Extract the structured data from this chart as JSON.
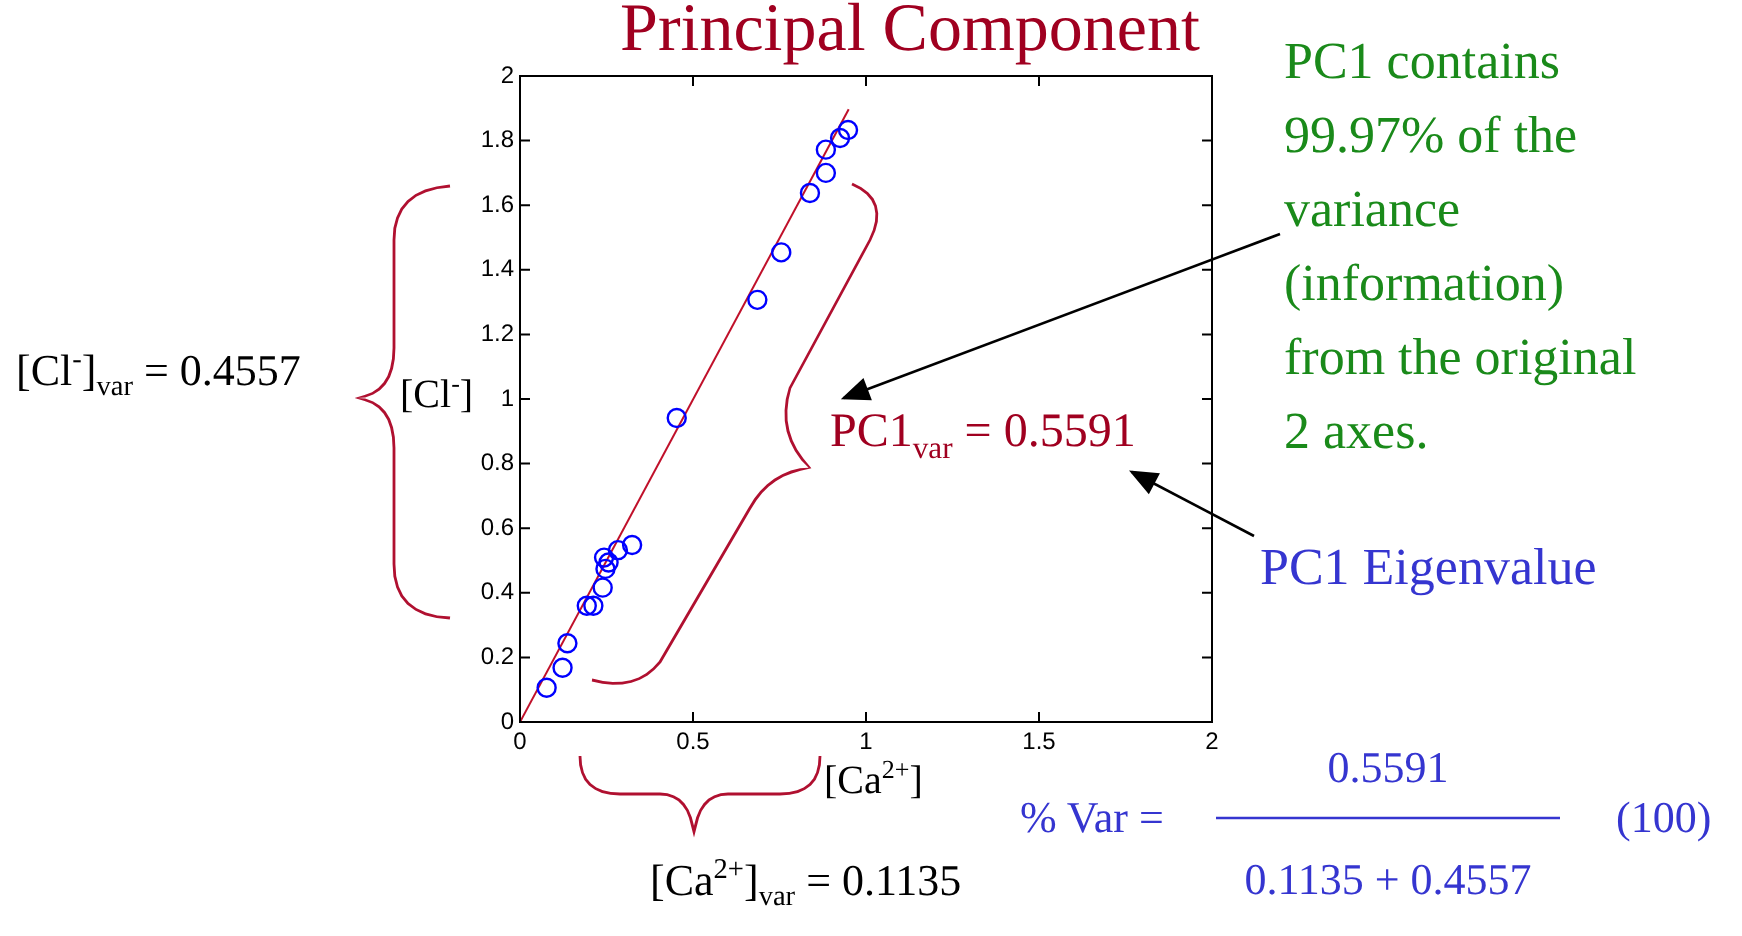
{
  "chart_data": {
    "type": "scatter",
    "title": "Principal Component",
    "xlabel": "[Ca$^{2+}$]",
    "ylabel": "[Cl$^{-}$]",
    "xlim": [
      0,
      2
    ],
    "xticks": [
      0,
      0.5,
      1,
      1.5,
      2
    ],
    "ylim": [
      0,
      2
    ],
    "yticks": [
      0,
      0.2,
      0.4,
      0.6,
      0.8,
      1,
      1.2,
      1.4,
      1.6,
      1.8,
      2
    ],
    "grid": false,
    "legend": false,
    "series": [
      {
        "type": "scatter",
        "marker": "circle",
        "color": "#0000ff",
        "x": [
          0.077,
          0.123,
          0.137,
          0.193,
          0.212,
          0.239,
          0.247,
          0.256,
          0.243,
          0.283,
          0.324,
          0.453,
          0.686,
          0.755,
          0.838,
          0.884,
          0.884,
          0.925,
          0.948
        ],
        "values": [
          0.106,
          0.168,
          0.244,
          0.36,
          0.36,
          0.416,
          0.474,
          0.494,
          0.509,
          0.532,
          0.548,
          0.941,
          1.307,
          1.454,
          1.638,
          1.7,
          1.772,
          1.808,
          1.833
        ]
      },
      {
        "type": "line",
        "marker": "none",
        "color": "#c0102a",
        "x": [
          0,
          0.95
        ],
        "values": [
          0,
          1.897
        ]
      }
    ],
    "annotations": [
      "[Cl$^{-}$]$_{var}$ = 0.4557",
      "PC1$_{var}$ = 0.5591",
      "PC1 contains 99.97% of the variance (information) from the original 2 axes.",
      "PC1 Eigenvalue",
      "[Ca$^{2+}$]$_{var}$ = 0.1135",
      "% Var =",
      "0.5591",
      "0.1135 + 0.4557",
      "(100)"
    ]
  }
}
